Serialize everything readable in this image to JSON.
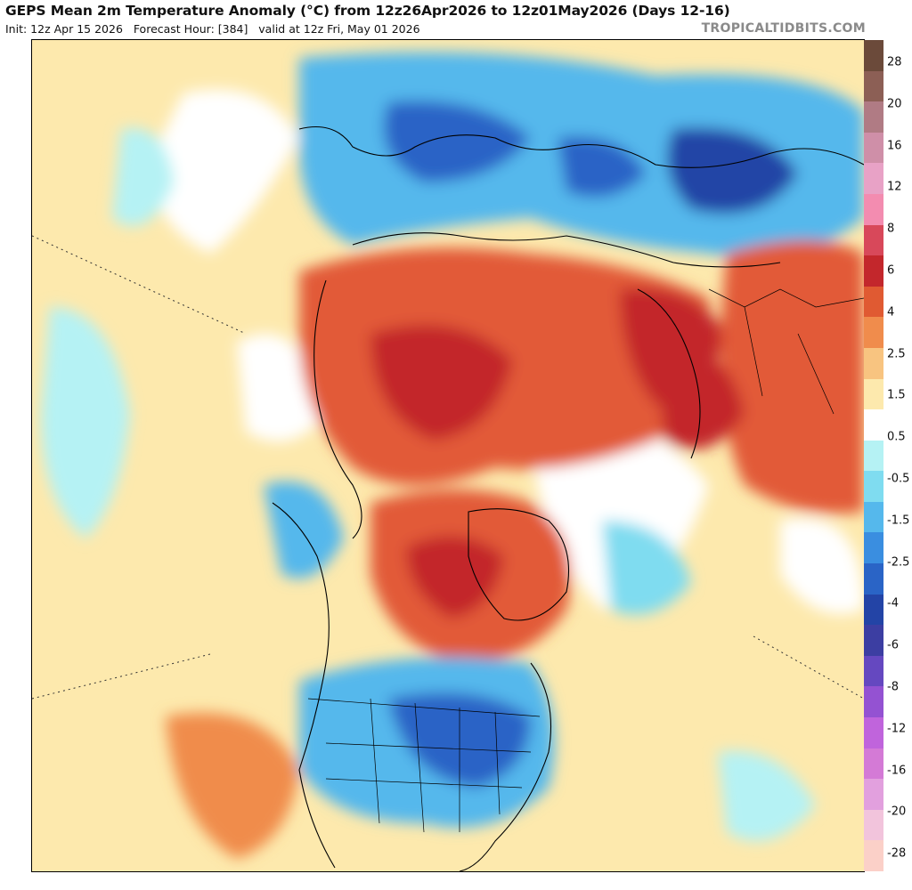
{
  "header": {
    "title": "GEPS Mean 2m Temperature Anomaly (°C) from 12z26Apr2026 to 12z01May2026 (Days 12-16)",
    "subtitle": "Init: 12z Apr 15 2026   Forecast Hour: [384]   valid at 12z Fri, May 01 2026",
    "credit": "TROPICALTIDBITS.COM"
  },
  "colorbar": {
    "labels": [
      "28",
      "20",
      "16",
      "12",
      "8",
      "6",
      "4",
      "2.5",
      "1.5",
      "0.5",
      "-0.5",
      "-1.5",
      "-2.5",
      "-4",
      "-6",
      "-8",
      "-12",
      "-16",
      "-20",
      "-28"
    ],
    "colors": [
      "#6b4a3a",
      "#8c5f55",
      "#b07b84",
      "#cf8fa8",
      "#e8a2c6",
      "#f38cb0",
      "#d8485a",
      "#c3272c",
      "#e05a32",
      "#f08c4c",
      "#f8c480",
      "#fde9ad",
      "#ffffff",
      "#b5f2f4",
      "#7fdcf0",
      "#55b8ec",
      "#3a8ee0",
      "#2a64c6",
      "#2344a6",
      "#3c3ea2",
      "#6548c0",
      "#9452d2",
      "#c064dc",
      "#d47ad6",
      "#e2a0de",
      "#f2c4dc",
      "#fbd0c8"
    ]
  },
  "map": {
    "palette": {
      "land_warm": "#e25a38",
      "land_hot": "#c3272c",
      "cold": "#3a8ee0",
      "cold_deep": "#2344a6",
      "cold_extreme": "#6548c0",
      "ocean_cool": "#7fdcf0",
      "neutral": "#ffffff",
      "mild": "#fde9ad"
    }
  }
}
